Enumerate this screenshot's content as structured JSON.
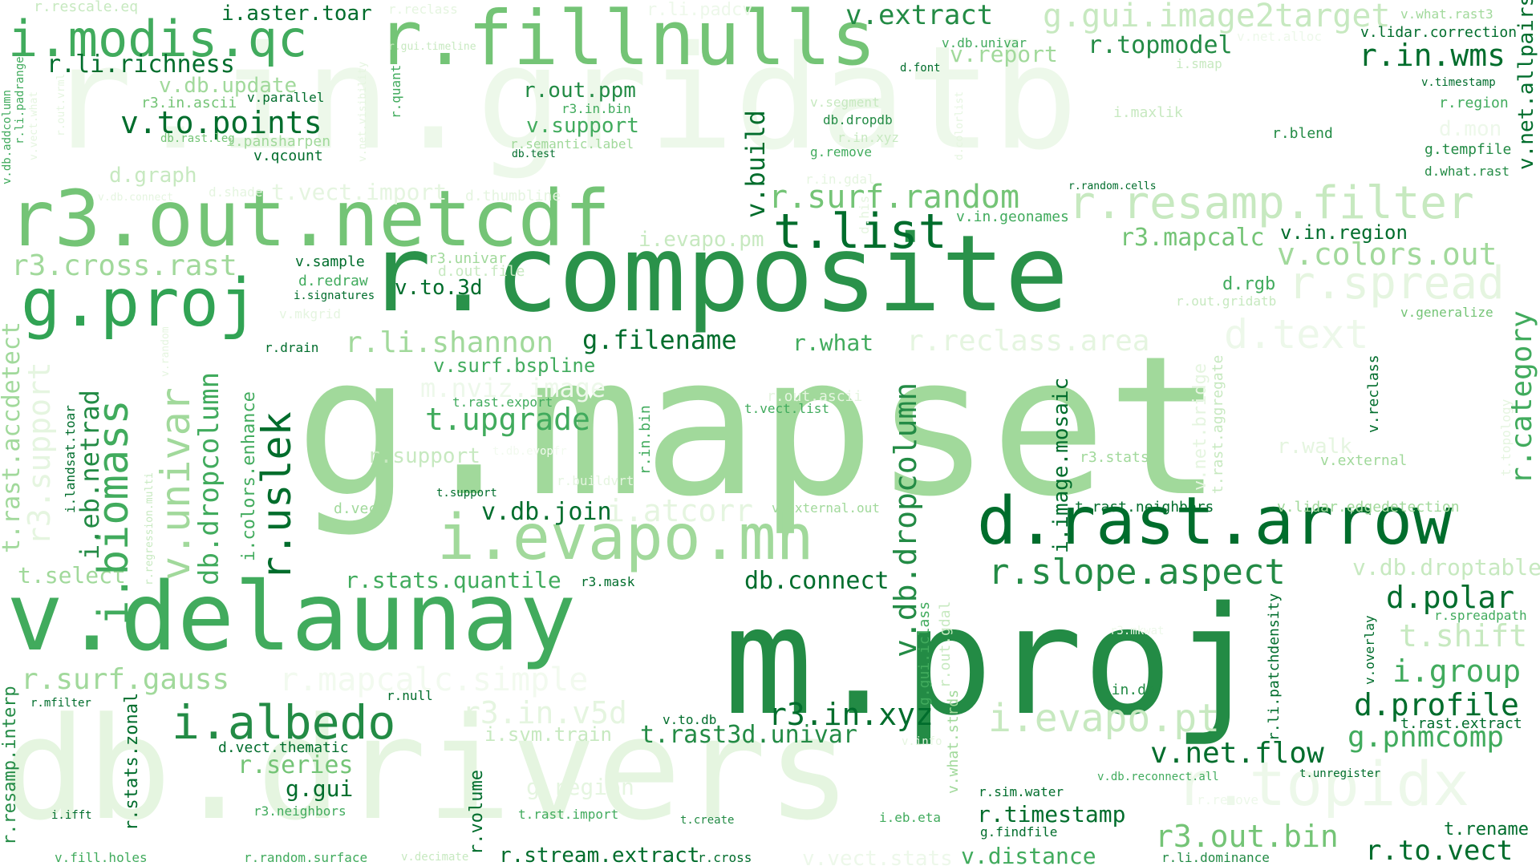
{
  "words": [
    {
      "text": "r.in.gridatb",
      "color": "#edf8ea"
    },
    {
      "text": "db.drivers",
      "color": "#e5f5e0"
    },
    {
      "text": "g.mapset",
      "color": "#a1d99b"
    },
    {
      "text": "m.proj",
      "color": "#238b45"
    },
    {
      "text": "r.composite",
      "color": "#2a924a"
    },
    {
      "text": "v.delaunay",
      "color": "#41ab5d"
    },
    {
      "text": "r3.out.netcdf",
      "color": "#74c476"
    },
    {
      "text": "r.fillnulls",
      "color": "#74c476"
    },
    {
      "text": "i.modis.qc",
      "color": "#41ab5d"
    },
    {
      "text": "d.rast.arrow",
      "color": "#006d2c"
    },
    {
      "text": "i.evapo.mh",
      "color": "#a1d99b"
    },
    {
      "text": "r.topidx",
      "color": "#edf8ea"
    },
    {
      "text": "r.resamp.filter",
      "color": "#c7e9c0"
    },
    {
      "text": "g.proj",
      "color": "#31a354"
    },
    {
      "text": "t.list",
      "color": "#006d2c"
    },
    {
      "text": "i.albedo",
      "color": "#238b45"
    },
    {
      "text": "r.spread",
      "color": "#e5f5e0"
    },
    {
      "text": "d.text",
      "color": "#edf8ea"
    },
    {
      "text": "i.evapo.pt",
      "color": "#c7e9c0"
    },
    {
      "text": "g.gui.image2target",
      "color": "#c7e9c0"
    },
    {
      "text": "r.slope.aspect",
      "color": "#238b45"
    },
    {
      "text": "r.surf.random",
      "color": "#74c476"
    },
    {
      "text": "r3.cross.rast",
      "color": "#a1d99b"
    },
    {
      "text": "r.surf.gauss",
      "color": "#a1d99b"
    },
    {
      "text": "r.mapcalc.simple",
      "color": "#f2faef"
    },
    {
      "text": "r3.in.v5d",
      "color": "#e5f5e0"
    },
    {
      "text": "r3.in.xyz",
      "color": "#006d2c"
    },
    {
      "text": "v.colors.out",
      "color": "#a1d99b"
    },
    {
      "text": "r.li.shannon",
      "color": "#a1d99b"
    },
    {
      "text": "g.filename",
      "color": "#006d2c"
    },
    {
      "text": "r.reclass.area",
      "color": "#e5f5e0"
    },
    {
      "text": "t.upgrade",
      "color": "#41ab5d"
    },
    {
      "text": "v.to.points",
      "color": "#006d2c"
    },
    {
      "text": "v.net.flow",
      "color": "#006d2c"
    },
    {
      "text": "g.pnmcomp",
      "color": "#41ab5d"
    },
    {
      "text": "r3.out.bin",
      "color": "#74c476"
    },
    {
      "text": "d.profile",
      "color": "#006d2c"
    },
    {
      "text": "i.group",
      "color": "#41ab5d"
    },
    {
      "text": "d.polar",
      "color": "#006d2c"
    },
    {
      "text": "t.shift",
      "color": "#c7e9c0"
    },
    {
      "text": "r.in.wms",
      "color": "#006d2c"
    },
    {
      "text": "v.db.droptable",
      "color": "#c7e9c0"
    },
    {
      "text": "r.to.vect",
      "color": "#006d2c"
    },
    {
      "text": "t.rast3d.univar",
      "color": "#238b45"
    },
    {
      "text": "i.atcorr",
      "color": "#e5f5e0"
    },
    {
      "text": "v.db.join",
      "color": "#006d2c"
    },
    {
      "text": "r.stats.quantile",
      "color": "#41ab5d"
    },
    {
      "text": "db.connect",
      "color": "#006d2c"
    },
    {
      "text": "r.stream.extract",
      "color": "#006d2c"
    },
    {
      "text": "v.distance",
      "color": "#41ab5d"
    },
    {
      "text": "r.timestamp",
      "color": "#006d2c"
    },
    {
      "text": "r.series",
      "color": "#74c476"
    },
    {
      "text": "g.gui",
      "color": "#006d2c"
    },
    {
      "text": "g.region",
      "color": "#e5f5e0"
    },
    {
      "text": "i.svm.train",
      "color": "#c7e9c0"
    },
    {
      "text": "v.surf.bspline",
      "color": "#41ab5d"
    },
    {
      "text": "v.extract",
      "color": "#238b45"
    },
    {
      "text": "r.topmodel",
      "color": "#238b45"
    },
    {
      "text": "v.report",
      "color": "#a1d99b"
    },
    {
      "text": "r.li.richness",
      "color": "#006d2c"
    },
    {
      "text": "v.db.update",
      "color": "#a1d99b"
    },
    {
      "text": "i.aster.toar",
      "color": "#006d2c"
    },
    {
      "text": "r.out.ppm",
      "color": "#238b45"
    },
    {
      "text": "v.support",
      "color": "#41ab5d"
    },
    {
      "text": "r3.mapcalc",
      "color": "#74c476"
    },
    {
      "text": "v.in.region",
      "color": "#006d2c"
    },
    {
      "text": "v.to.3d",
      "color": "#006d2c"
    },
    {
      "text": "r.what",
      "color": "#41ab5d"
    },
    {
      "text": "t.select",
      "color": "#a1d99b"
    },
    {
      "text": "r.support",
      "color": "#c7e9c0"
    },
    {
      "text": "i.evapo.pm",
      "color": "#c7e9c0"
    },
    {
      "text": "d.graph",
      "color": "#c7e9c0"
    },
    {
      "text": "v.qcount",
      "color": "#006d2c"
    },
    {
      "text": "r.rescale.eq",
      "color": "#c7e9c0"
    },
    {
      "text": "r.reclass",
      "color": "#e5f5e0"
    },
    {
      "text": "r.li.padcv",
      "color": "#edf8ea"
    },
    {
      "text": "v.what.rast3",
      "color": "#a1d99b"
    },
    {
      "text": "v.lidar.correction",
      "color": "#006d2c"
    },
    {
      "text": "v.net.alloc",
      "color": "#edf8ea"
    },
    {
      "text": "v.db.univar",
      "color": "#41ab5d"
    },
    {
      "text": "r.gui.timeline",
      "color": "#c7e9c0"
    },
    {
      "text": "d.font",
      "color": "#006d2c"
    },
    {
      "text": "i.smap",
      "color": "#c7e9c0"
    },
    {
      "text": "v.timestamp",
      "color": "#006d2c"
    },
    {
      "text": "r.region",
      "color": "#41ab5d"
    },
    {
      "text": "v.parallel",
      "color": "#006d2c"
    },
    {
      "text": "r3.in.ascii",
      "color": "#74c476"
    },
    {
      "text": "r3.in.bin",
      "color": "#41ab5d"
    },
    {
      "text": "v.segment",
      "color": "#c7e9c0"
    },
    {
      "text": "i.maxlik",
      "color": "#c7e9c0"
    },
    {
      "text": "d.mon",
      "color": "#edf8ea"
    },
    {
      "text": "db.rast.leg",
      "color": "#74c476"
    },
    {
      "text": "i.pansharpen",
      "color": "#a1d99b"
    },
    {
      "text": "r.semantic.label",
      "color": "#a1d99b"
    },
    {
      "text": "db.dropdb",
      "color": "#238b45"
    },
    {
      "text": "r.in.xyz",
      "color": "#c7e9c0"
    },
    {
      "text": "r.blend",
      "color": "#238b45"
    },
    {
      "text": "g.tempfile",
      "color": "#238b45"
    },
    {
      "text": "db.test",
      "color": "#006d2c"
    },
    {
      "text": "g.remove",
      "color": "#41ab5d"
    },
    {
      "text": "d.what.rast",
      "color": "#238b45"
    },
    {
      "text": "d.shade",
      "color": "#e5f5e0"
    },
    {
      "text": "t.vect.import",
      "color": "#e5f5e0"
    },
    {
      "text": "d.thumbline",
      "color": "#e5f5e0"
    },
    {
      "text": "r.in.gdal",
      "color": "#e5f5e0"
    },
    {
      "text": "r.random.cells",
      "color": "#006d2c"
    },
    {
      "text": "v.db.connect",
      "color": "#e5f5e0"
    },
    {
      "text": "v.in.geonames",
      "color": "#41ab5d"
    },
    {
      "text": "v.sample",
      "color": "#006d2c"
    },
    {
      "text": "r3.univar",
      "color": "#a1d99b"
    },
    {
      "text": "d.redraw",
      "color": "#41ab5d"
    },
    {
      "text": "d.out.file",
      "color": "#c7e9c0"
    },
    {
      "text": "i.signatures",
      "color": "#006d2c"
    },
    {
      "text": "d.rgb",
      "color": "#41ab5d"
    },
    {
      "text": "r.out.gridatb",
      "color": "#c7e9c0"
    },
    {
      "text": "v.mkgrid",
      "color": "#e5f5e0"
    },
    {
      "text": "v.generalize",
      "color": "#74c476"
    },
    {
      "text": "r.drain",
      "color": "#006d2c"
    },
    {
      "text": "m.nviz.image",
      "color": "#edf8ea"
    },
    {
      "text": "t.rast.export",
      "color": "#41ab5d"
    },
    {
      "text": "r.out.ascii",
      "color": "#e5f5e0"
    },
    {
      "text": "t.vect.list",
      "color": "#41ab5d"
    },
    {
      "text": "r.walk",
      "color": "#e5f5e0"
    },
    {
      "text": "v.external",
      "color": "#a1d99b"
    },
    {
      "text": "r.buildvrt",
      "color": "#e5f5e0"
    },
    {
      "text": "t.db.evopfr",
      "color": "#f2faef"
    },
    {
      "text": "r3.stats",
      "color": "#a1d99b"
    },
    {
      "text": "t.support",
      "color": "#006d2c"
    },
    {
      "text": "d.vect",
      "color": "#a1d99b"
    },
    {
      "text": "v.external.out",
      "color": "#a1d99b"
    },
    {
      "text": "t.rast.neighbors",
      "color": "#006d2c"
    },
    {
      "text": "v.lidar.edgedetection",
      "color": "#a1d99b"
    },
    {
      "text": "r3.mask",
      "color": "#006d2c"
    },
    {
      "text": "r.spreadpath",
      "color": "#41ab5d"
    },
    {
      "text": "r.mfilter",
      "color": "#006d2c"
    },
    {
      "text": "r.null",
      "color": "#006d2c"
    },
    {
      "text": "r3.mkwat",
      "color": "#edf8ea"
    },
    {
      "text": "v.to.db",
      "color": "#006d2c"
    },
    {
      "text": "v.in.db",
      "color": "#238b45"
    },
    {
      "text": "t.rast.extract",
      "color": "#006d2c"
    },
    {
      "text": "d.vect.thematic",
      "color": "#006d2c"
    },
    {
      "text": "v.info",
      "color": "#e5f5e0"
    },
    {
      "text": "v.db.reconnect.all",
      "color": "#41ab5d"
    },
    {
      "text": "t.unregister",
      "color": "#006d2c"
    },
    {
      "text": "r3.neighbors",
      "color": "#41ab5d"
    },
    {
      "text": "i.ifft",
      "color": "#006d2c"
    },
    {
      "text": "t.rast.import",
      "color": "#41ab5d"
    },
    {
      "text": "t.create",
      "color": "#238b45"
    },
    {
      "text": "i.eb.eta",
      "color": "#41ab5d"
    },
    {
      "text": "r.sim.water",
      "color": "#006d2c"
    },
    {
      "text": "g.findfile",
      "color": "#006d2c"
    },
    {
      "text": "r.remove",
      "color": "#edf8ea"
    },
    {
      "text": "t.rename",
      "color": "#006d2c"
    },
    {
      "text": "v.fill.holes",
      "color": "#41ab5d"
    },
    {
      "text": "r.random.surface",
      "color": "#41ab5d"
    },
    {
      "text": "v.decimate",
      "color": "#c7e9c0"
    },
    {
      "text": "r.cross",
      "color": "#006d2c"
    },
    {
      "text": "v.vect.stats",
      "color": "#edf8ea"
    },
    {
      "text": "r.li.dominance",
      "color": "#238b45"
    },
    {
      "text": "v.net.allpairs",
      "color": "#006d2c"
    },
    {
      "text": "r.category",
      "color": "#41ab5d"
    },
    {
      "text": "t.topology",
      "color": "#e5f5e0"
    },
    {
      "text": "v.reclass",
      "color": "#006d2c"
    },
    {
      "text": "v.overlay",
      "color": "#006d2c"
    },
    {
      "text": "r.li.patchdensity",
      "color": "#006d2c"
    },
    {
      "text": "v.net.bridge",
      "color": "#e5f5e0"
    },
    {
      "text": "t.rast.aggregate",
      "color": "#c7e9c0"
    },
    {
      "text": "i.image.mosaic",
      "color": "#006d2c"
    },
    {
      "text": "v.db.dropcolumn",
      "color": "#238b45"
    },
    {
      "text": "g.gui.iclass",
      "color": "#41ab5d"
    },
    {
      "text": "r.out.gdal",
      "color": "#c7e9c0"
    },
    {
      "text": "v.what.strds",
      "color": "#a1d99b"
    },
    {
      "text": "r.in.bin",
      "color": "#41ab5d"
    },
    {
      "text": "v.build",
      "color": "#006d2c"
    },
    {
      "text": "d.his",
      "color": "#e5f5e0"
    },
    {
      "text": "r.uslek",
      "color": "#006d2c"
    },
    {
      "text": "db.dropcolumn",
      "color": "#41ab5d"
    },
    {
      "text": "i.colors.enhance",
      "color": "#41ab5d"
    },
    {
      "text": "v.univar",
      "color": "#a1d99b"
    },
    {
      "text": "i.biomass",
      "color": "#41ab5d"
    },
    {
      "text": "r.regression.multi",
      "color": "#c7e9c0"
    },
    {
      "text": "v.random",
      "color": "#e5f5e0"
    },
    {
      "text": "i.eb.netrad",
      "color": "#238b45"
    },
    {
      "text": "i.landsat.toar",
      "color": "#006d2c"
    },
    {
      "text": "r3.support",
      "color": "#e5f5e0"
    },
    {
      "text": "t.rast.accdetect",
      "color": "#a1d99b"
    },
    {
      "text": "r.resamp.interp",
      "color": "#238b45"
    },
    {
      "text": "r.stats.zonal",
      "color": "#006d2c"
    },
    {
      "text": "r.volume",
      "color": "#006d2c"
    },
    {
      "text": "r.quant",
      "color": "#41ab5d"
    },
    {
      "text": "v.net.visibility",
      "color": "#e5f5e0"
    },
    {
      "text": "d.colorlist",
      "color": "#e5f5e0"
    },
    {
      "text": "v.db.addcolumn",
      "color": "#41ab5d"
    },
    {
      "text": "r.li.padrange",
      "color": "#41ab5d"
    },
    {
      "text": "v.vect.what",
      "color": "#e5f5e0"
    },
    {
      "text": "r.out.vrml",
      "color": "#e5f5e0"
    }
  ]
}
